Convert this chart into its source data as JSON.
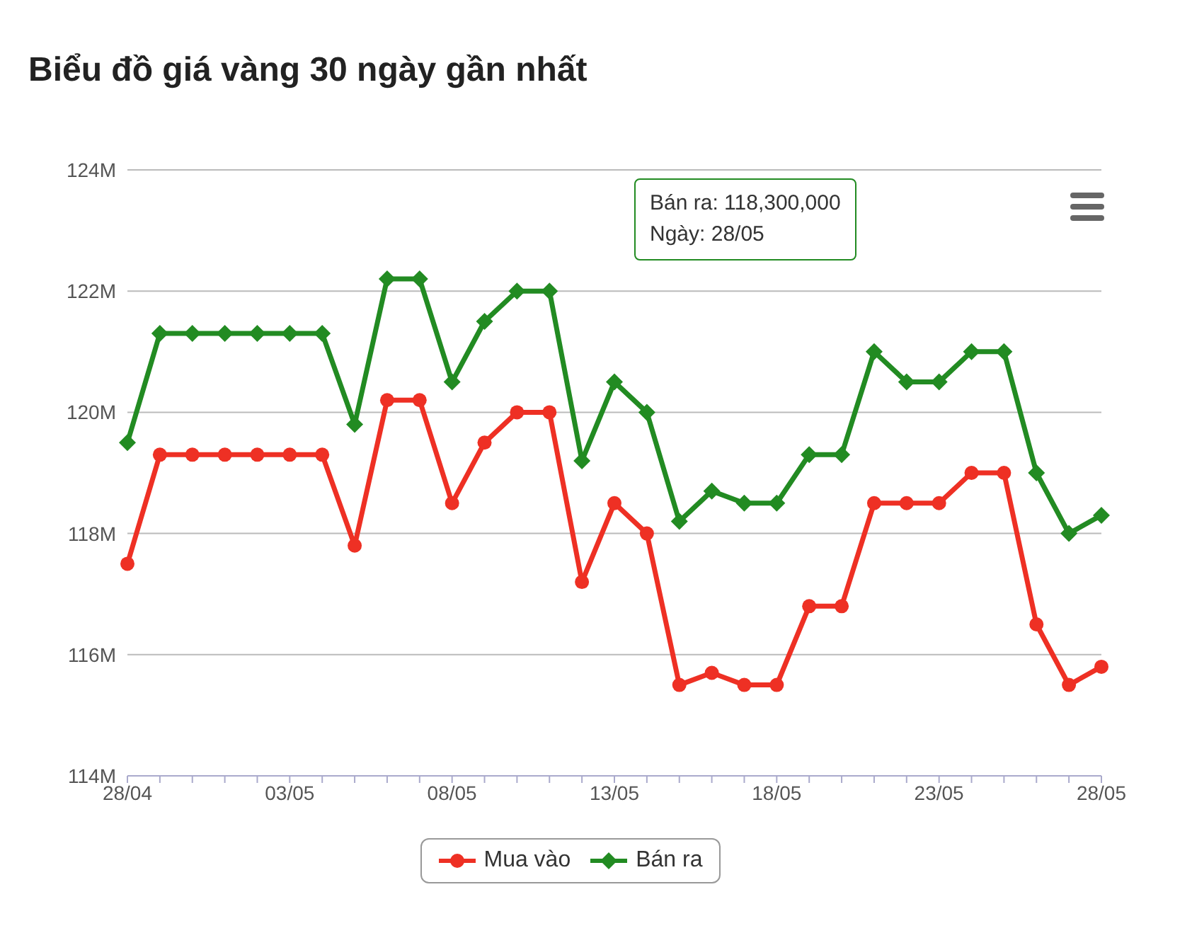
{
  "chart_data": {
    "type": "line",
    "title": "Biểu đồ giá vàng 30 ngày gần nhất",
    "categories": [
      "28/04",
      null,
      null,
      null,
      null,
      "03/05",
      null,
      null,
      null,
      null,
      "08/05",
      null,
      null,
      null,
      null,
      "13/05",
      null,
      null,
      null,
      null,
      "18/05",
      null,
      null,
      null,
      null,
      "23/05",
      null,
      null,
      null,
      null,
      "28/05"
    ],
    "series": [
      {
        "name": "Mua vào",
        "color": "#ee3024",
        "marker": "circle",
        "values": [
          117500000,
          119300000,
          119300000,
          119300000,
          119300000,
          119300000,
          119300000,
          117800000,
          120200000,
          120200000,
          118500000,
          119500000,
          120000000,
          120000000,
          117200000,
          118500000,
          118000000,
          115500000,
          115700000,
          115500000,
          115500000,
          116800000,
          116800000,
          118500000,
          118500000,
          118500000,
          119000000,
          119000000,
          116500000,
          115500000,
          115800000
        ]
      },
      {
        "name": "Bán ra",
        "color": "#228b22",
        "marker": "diamond",
        "values": [
          119500000,
          121300000,
          121300000,
          121300000,
          121300000,
          121300000,
          121300000,
          119800000,
          122200000,
          122200000,
          120500000,
          121500000,
          122000000,
          122000000,
          119200000,
          120500000,
          120000000,
          118200000,
          118700000,
          118500000,
          118500000,
          119300000,
          119300000,
          121000000,
          120500000,
          120500000,
          121000000,
          121000000,
          119000000,
          118000000,
          118300000
        ]
      }
    ],
    "ylim": [
      114000000,
      124000000
    ],
    "yticks": [
      {
        "value": 114000000,
        "label": "114M"
      },
      {
        "value": 116000000,
        "label": "116M"
      },
      {
        "value": 118000000,
        "label": "118M"
      },
      {
        "value": 120000000,
        "label": "120M"
      },
      {
        "value": 122000000,
        "label": "122M"
      },
      {
        "value": 124000000,
        "label": "124M"
      }
    ],
    "grid": "y",
    "legend": "bottom",
    "line_style": "solid",
    "annotations": [
      "Bán ra: 118,300,000",
      "Ngày: 28/05"
    ]
  }
}
